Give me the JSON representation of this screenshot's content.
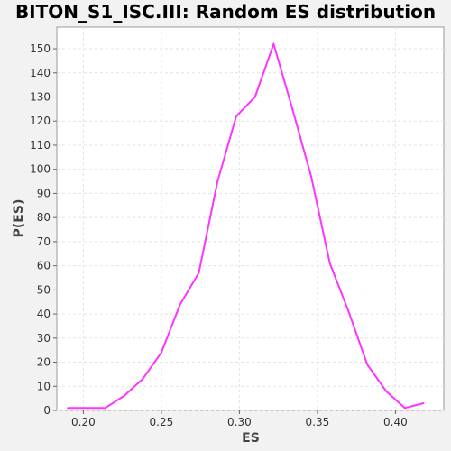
{
  "chart_data": {
    "type": "line",
    "title": "BITON_S1_ISC.III: Random ES distribution",
    "xlabel": "ES",
    "ylabel": "P(ES)",
    "xlim": [
      0.183,
      0.431
    ],
    "ylim": [
      0,
      159
    ],
    "xticks": [
      "0.20",
      "0.25",
      "0.30",
      "0.35",
      "0.40"
    ],
    "xtick_values": [
      0.2,
      0.25,
      0.3,
      0.35,
      0.4
    ],
    "yticks": [
      0,
      10,
      20,
      30,
      40,
      50,
      60,
      70,
      80,
      90,
      100,
      110,
      120,
      130,
      140,
      150
    ],
    "grid": true,
    "line_color": "#ff33ff",
    "series": [
      {
        "x": [
          0.19,
          0.202,
          0.214,
          0.226,
          0.238,
          0.25,
          0.262,
          0.274,
          0.286,
          0.298,
          0.31,
          0.322,
          0.334,
          0.346,
          0.358,
          0.37,
          0.382,
          0.394,
          0.406,
          0.418
        ],
        "y": [
          1,
          1,
          1,
          6,
          13,
          24,
          44,
          57,
          95,
          122,
          130,
          152,
          125,
          97,
          61,
          41,
          19,
          8,
          1,
          3
        ]
      }
    ]
  }
}
